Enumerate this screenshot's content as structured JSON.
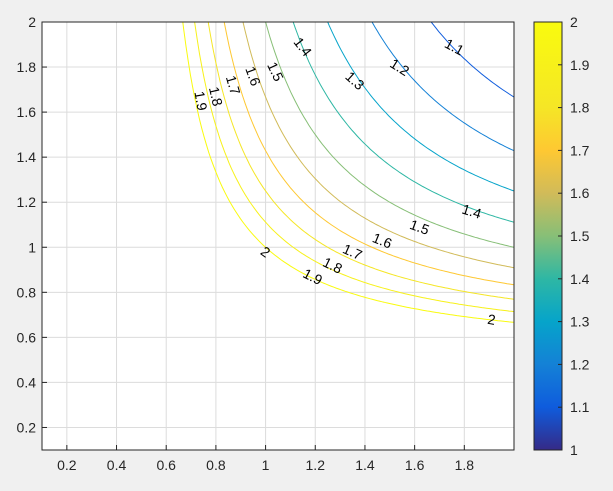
{
  "chart_data": {
    "type": "contour",
    "title": "",
    "xlabel": "",
    "ylabel": "",
    "xlim": [
      0.1,
      2.0
    ],
    "ylim": [
      0.1,
      2.0
    ],
    "grid": true,
    "x_ticks": [
      "0.2",
      "0.4",
      "0.6",
      "0.8",
      "1",
      "1.2",
      "1.4",
      "1.6",
      "1.8"
    ],
    "x_tick_values": [
      0.2,
      0.4,
      0.6,
      0.8,
      1.0,
      1.2,
      1.4,
      1.6,
      1.8
    ],
    "y_ticks": [
      "0.2",
      "0.4",
      "0.6",
      "0.8",
      "1",
      "1.2",
      "1.4",
      "1.6",
      "1.8",
      "2"
    ],
    "y_tick_values": [
      0.2,
      0.4,
      0.6,
      0.8,
      1.0,
      1.2,
      1.4,
      1.6,
      1.8,
      2.0
    ],
    "levels": [
      1.1,
      1.2,
      1.3,
      1.4,
      1.5,
      1.6,
      1.7,
      1.8,
      1.9,
      2.0
    ],
    "contour_labels": [
      {
        "text": "1.1",
        "x": 1.76,
        "y": 1.89,
        "angle": 28
      },
      {
        "text": "1.2",
        "x": 1.54,
        "y": 1.8,
        "angle": 32
      },
      {
        "text": "1.3",
        "x": 1.36,
        "y": 1.74,
        "angle": 42
      },
      {
        "text": "1.4",
        "x": 1.15,
        "y": 1.89,
        "angle": 52
      },
      {
        "text": "1.5",
        "x": 1.04,
        "y": 1.78,
        "angle": 65
      },
      {
        "text": "1.6",
        "x": 0.95,
        "y": 1.76,
        "angle": 70
      },
      {
        "text": "1.7",
        "x": 0.87,
        "y": 1.72,
        "angle": 74
      },
      {
        "text": "1.8",
        "x": 0.8,
        "y": 1.67,
        "angle": 77
      },
      {
        "text": "1.9",
        "x": 0.74,
        "y": 1.65,
        "angle": 80
      },
      {
        "text": "1.4",
        "x": 1.83,
        "y": 1.16,
        "angle": 17
      },
      {
        "text": "1.5",
        "x": 1.62,
        "y": 1.09,
        "angle": 20
      },
      {
        "text": "1.6",
        "x": 1.47,
        "y": 1.03,
        "angle": 22
      },
      {
        "text": "1.7",
        "x": 1.35,
        "y": 0.98,
        "angle": 24
      },
      {
        "text": "1.8",
        "x": 1.27,
        "y": 0.92,
        "angle": 26
      },
      {
        "text": "1.9",
        "x": 1.19,
        "y": 0.87,
        "angle": 27
      },
      {
        "text": "2",
        "x": 1.0,
        "y": 0.98,
        "angle": 35
      },
      {
        "text": "2",
        "x": 1.91,
        "y": 0.68,
        "angle": 10
      }
    ],
    "colorbar": {
      "min": 1,
      "max": 2,
      "ticks": [
        "1",
        "1.1",
        "1.2",
        "1.3",
        "1.4",
        "1.5",
        "1.6",
        "1.7",
        "1.8",
        "1.9",
        "2"
      ],
      "tick_values": [
        1,
        1.1,
        1.2,
        1.3,
        1.4,
        1.5,
        1.6,
        1.7,
        1.8,
        1.9,
        2
      ],
      "colormap": "parula"
    }
  }
}
